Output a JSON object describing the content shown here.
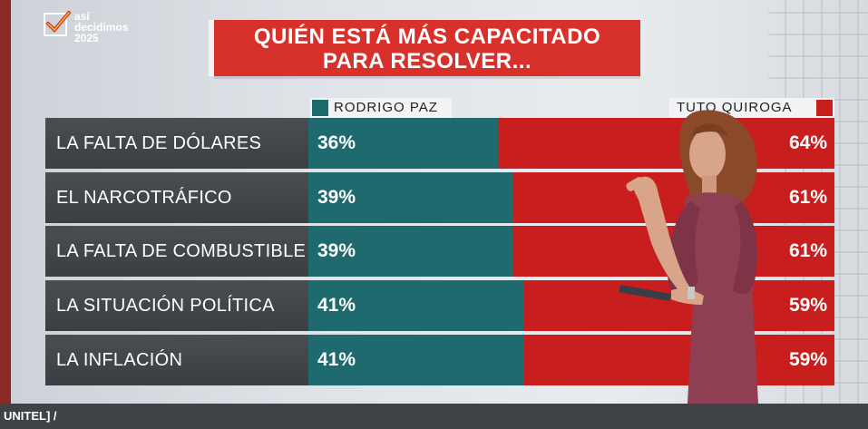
{
  "logo": {
    "line1": "así",
    "line2": "decidimos",
    "line3": "2025"
  },
  "chart_data": {
    "type": "bar",
    "title_line1": "QUIÉN ESTÁ MÁS CAPACITADO",
    "title_line2": "PARA RESOLVER...",
    "categories": [
      "LA FALTA DE DÓLARES",
      "EL NARCOTRÁFICO",
      "LA FALTA DE COMBUSTIBLE",
      "LA SITUACIÓN POLÍTICA",
      "LA INFLACIÓN"
    ],
    "series": [
      {
        "name": "RODRIGO PAZ",
        "values": [
          36,
          39,
          39,
          41,
          41
        ],
        "labels": [
          "36%",
          "39%",
          "39%",
          "41%",
          "41%"
        ],
        "color": "#1f6a6e"
      },
      {
        "name": "TUTO QUIROGA",
        "values": [
          64,
          61,
          61,
          59,
          59
        ],
        "labels": [
          "64%",
          "61%",
          "61%",
          "59%",
          "59%"
        ],
        "color": "#c81e1e"
      }
    ],
    "stacked": true,
    "xlim": [
      0,
      100
    ],
    "legend": "top"
  },
  "caption": "UNITEL] /"
}
